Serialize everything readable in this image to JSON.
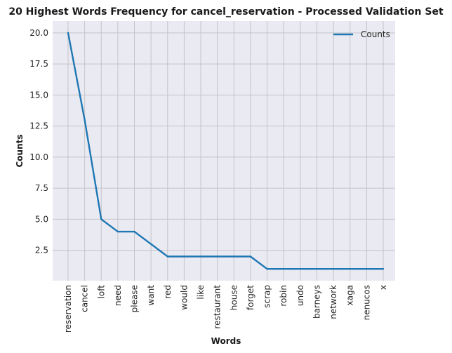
{
  "chart_data": {
    "type": "line",
    "title": "20 Highest Words Frequency for cancel_reservation - Processed Validation Set",
    "xlabel": "Words",
    "ylabel": "Counts",
    "categories": [
      "reservation",
      "cancel",
      "loft",
      "need",
      "please",
      "want",
      "red",
      "would",
      "like",
      "restaurant",
      "house",
      "forget",
      "scrap",
      "robin",
      "undo",
      "barneys",
      "network",
      "xaga",
      "nenucos",
      "x"
    ],
    "series": [
      {
        "name": "Counts",
        "values": [
          20,
          13,
          5,
          4,
          4,
          3,
          2,
          2,
          2,
          2,
          2,
          2,
          1,
          1,
          1,
          1,
          1,
          1,
          1,
          1
        ]
      }
    ],
    "yticks": [
      "2.5",
      "5.0",
      "7.5",
      "10.0",
      "12.5",
      "15.0",
      "17.5",
      "20.0"
    ],
    "ylim": [
      0.05,
      20.95
    ],
    "grid": true,
    "legend": "top-right",
    "colors": {
      "line": "#1f77b4",
      "plot_bg": "#eaeaf2",
      "grid": "#c4c4c8"
    }
  }
}
